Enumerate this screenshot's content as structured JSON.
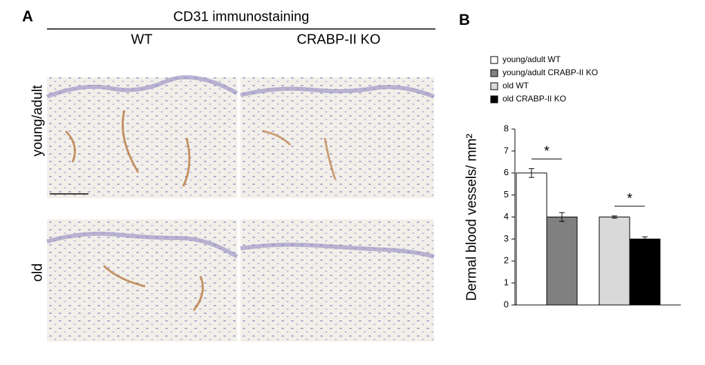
{
  "panel_a": {
    "label": "A",
    "title": "CD31 immunostaining",
    "columns": [
      "WT",
      "CRABP-II KO"
    ],
    "rows": [
      "young/adult",
      "old"
    ]
  },
  "chart_data": {
    "type": "bar",
    "panel_label": "B",
    "ylabel": "Dermal blood vessels/ mm²",
    "categories": [
      null,
      null
    ],
    "series": [
      {
        "name": "young/adult WT",
        "color": "#ffffff",
        "values": [
          6,
          null
        ],
        "errors": [
          0.2,
          null
        ]
      },
      {
        "name": "young/adult CRABP-II KO",
        "color": "#808080",
        "values": [
          4,
          null
        ],
        "errors": [
          0.2,
          null
        ]
      },
      {
        "name": "old WT",
        "color": "#d9d9d9",
        "values": [
          null,
          4
        ],
        "errors": [
          null,
          0.05
        ]
      },
      {
        "name": "old CRABP-II KO",
        "color": "#000000",
        "values": [
          null,
          3
        ],
        "errors": [
          null,
          0.1
        ]
      }
    ],
    "ylim": [
      0,
      8
    ],
    "yticks": [
      0,
      1,
      2,
      3,
      4,
      5,
      6,
      7,
      8
    ],
    "annotations": [
      {
        "text": "*"
      },
      {
        "text": "*"
      }
    ]
  }
}
